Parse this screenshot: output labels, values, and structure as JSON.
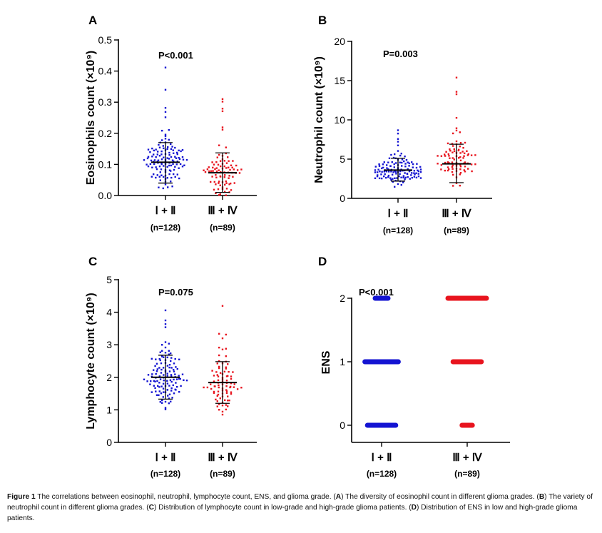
{
  "figure": {
    "caption": {
      "label": "Figure 1",
      "segments": [
        {
          "t": " The correlations between eosinophil, neutrophil, lymphocyte count, ENS, and glioma grade. (",
          "b": false
        },
        {
          "t": "A",
          "b": true
        },
        {
          "t": ") The diversity of eosinophil count in different glioma grades. (",
          "b": false
        },
        {
          "t": "B",
          "b": true
        },
        {
          "t": ") The variety of neutrophil count in different glioma grades. (",
          "b": false
        },
        {
          "t": "C",
          "b": true
        },
        {
          "t": ") Distribution of lymphocyte count in low-grade and high-grade glioma patients. (",
          "b": false
        },
        {
          "t": "D",
          "b": true
        },
        {
          "t": ") Distribution of ENS in low and high-grade glioma patients.",
          "b": false
        }
      ]
    }
  },
  "colors": {
    "low_grade": "#1414d2",
    "high_grade": "#e8141e",
    "axis": "#000000"
  },
  "chart_data": [
    {
      "panel": "A",
      "type": "scatter",
      "title": "",
      "ylabel": "Eosinophils count (×10⁹)",
      "ylim": [
        0,
        0.5
      ],
      "yticks": [
        "0.0",
        "0.1",
        "0.2",
        "0.3",
        "0.4",
        "0.5"
      ],
      "ytick_values": [
        0,
        0.1,
        0.2,
        0.3,
        0.4,
        0.5
      ],
      "annotation": "P<0.001",
      "categories": [
        "Ⅰ + Ⅱ",
        "Ⅲ + Ⅳ"
      ],
      "category_n": [
        "(n=128)",
        "(n=89)"
      ],
      "series": [
        {
          "name": "Ⅰ + Ⅱ",
          "n": 128,
          "mean": 0.107,
          "sd_low": 0.04,
          "sd_high": 0.17,
          "min": 0.0,
          "max": 0.41,
          "outliers": [
            0.41,
            0.34,
            0.28,
            0.27,
            0.25
          ]
        },
        {
          "name": "Ⅲ + Ⅳ",
          "n": 89,
          "mean": 0.073,
          "sd_low": 0.01,
          "sd_high": 0.137,
          "min": 0.0,
          "max": 0.31,
          "outliers": [
            0.31,
            0.3,
            0.28,
            0.27,
            0.22,
            0.21
          ]
        }
      ]
    },
    {
      "panel": "B",
      "type": "scatter",
      "title": "",
      "ylabel": "Neutrophil count  (×10⁹)",
      "ylim": [
        0,
        20
      ],
      "yticks": [
        "0",
        "5",
        "10",
        "15",
        "20"
      ],
      "ytick_values": [
        0,
        5,
        10,
        15,
        20
      ],
      "annotation": "P=0.003",
      "categories": [
        "Ⅰ + Ⅱ",
        "Ⅲ + Ⅳ"
      ],
      "category_n": [
        "(n=128)",
        "(n=89)"
      ],
      "series": [
        {
          "name": "Ⅰ + Ⅱ",
          "n": 128,
          "mean": 3.6,
          "sd_low": 2.2,
          "sd_high": 5.1,
          "min": 1.2,
          "max": 8.7,
          "outliers": [
            8.7,
            8.2,
            7.6,
            7.2,
            6.8
          ]
        },
        {
          "name": "Ⅲ + Ⅳ",
          "n": 89,
          "mean": 4.4,
          "sd_low": 2.0,
          "sd_high": 6.9,
          "min": 1.5,
          "max": 15.4,
          "outliers": [
            15.4,
            13.6,
            13.2,
            10.2,
            9.0,
            8.6
          ]
        }
      ]
    },
    {
      "panel": "C",
      "type": "scatter",
      "title": "",
      "ylabel": "Lymphocyte count (×10⁹)",
      "ylim": [
        0,
        5
      ],
      "yticks": [
        "0",
        "1",
        "2",
        "3",
        "4",
        "5"
      ],
      "ytick_values": [
        0,
        1,
        2,
        3,
        4,
        5
      ],
      "annotation": "P=0.075",
      "categories": [
        "Ⅰ + Ⅱ",
        "Ⅲ + Ⅳ"
      ],
      "category_n": [
        "(n=128)",
        "(n=89)"
      ],
      "series": [
        {
          "name": "Ⅰ + Ⅱ",
          "n": 128,
          "mean": 2.0,
          "sd_low": 1.33,
          "sd_high": 2.68,
          "min": 0.85,
          "max": 4.05,
          "outliers": [
            4.05,
            3.75,
            3.65,
            3.55
          ]
        },
        {
          "name": "Ⅲ + Ⅳ",
          "n": 89,
          "mean": 1.84,
          "sd_low": 1.2,
          "sd_high": 2.48,
          "min": 0.8,
          "max": 4.2,
          "outliers": [
            4.2,
            3.35,
            3.3,
            3.2
          ]
        }
      ]
    },
    {
      "panel": "D",
      "type": "scatter",
      "title": "",
      "ylabel": "ENS",
      "ylim": [
        0,
        2
      ],
      "yticks": [
        "0",
        "1",
        "2"
      ],
      "ytick_values": [
        0,
        1,
        2
      ],
      "annotation": "P<0.001",
      "categories": [
        "Ⅰ + Ⅱ",
        "Ⅲ + Ⅳ"
      ],
      "category_n": [
        "(n=128)",
        "(n=89)"
      ],
      "series": [
        {
          "name": "Ⅰ + Ⅱ",
          "levels": [
            0,
            1,
            2
          ],
          "relative_band_width": [
            0.55,
            0.65,
            0.25
          ]
        },
        {
          "name": "Ⅲ + Ⅳ",
          "levels": [
            0,
            1,
            2
          ],
          "relative_band_width": [
            0.2,
            0.55,
            0.75
          ]
        }
      ]
    }
  ]
}
